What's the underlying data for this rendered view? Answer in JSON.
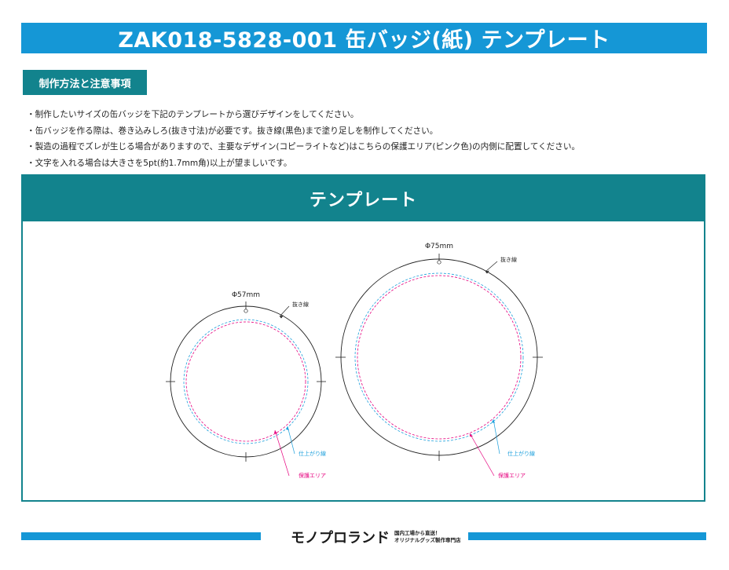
{
  "header": {
    "title": "ZAK018-5828-001 缶バッジ(紙) テンプレート"
  },
  "notes_section": {
    "label": "制作方法と注意事項",
    "items": [
      "・制作したいサイズの缶バッジを下記のテンプレートから選びデザインをしてください。",
      "・缶バッジを作る際は、巻き込みしろ(抜き寸法)が必要です。抜き線(黒色)まで塗り足しを制作してください。",
      "・製造の過程でズレが生じる場合がありますので、主要なデザイン(コピーライトなど)はこちらの保護エリア(ピンク色)の内側に配置してください。",
      "・文字を入れる場合は大きさを5pt(約1.7mm角)以上が望ましいです。"
    ]
  },
  "template_section": {
    "title": "テンプレート",
    "badges": [
      {
        "size_label": "Φ57mm",
        "cut_line_label": "抜き線",
        "finish_line_label": "仕上がり線",
        "safe_area_label": "保護エリア"
      },
      {
        "size_label": "Φ75mm",
        "cut_line_label": "抜き線",
        "finish_line_label": "仕上がり線",
        "safe_area_label": "保護エリア"
      }
    ]
  },
  "colors": {
    "brand_blue": "#1597d6",
    "teal": "#12838d",
    "cut_line": "#222222",
    "finish_line": "#1ea0dc",
    "safe_area": "#e6007e"
  },
  "footer": {
    "logo": "モノプロランド",
    "tagline_line1": "国内工場から直送！",
    "tagline_line2": "オリジナルグッズ製作専門店"
  }
}
